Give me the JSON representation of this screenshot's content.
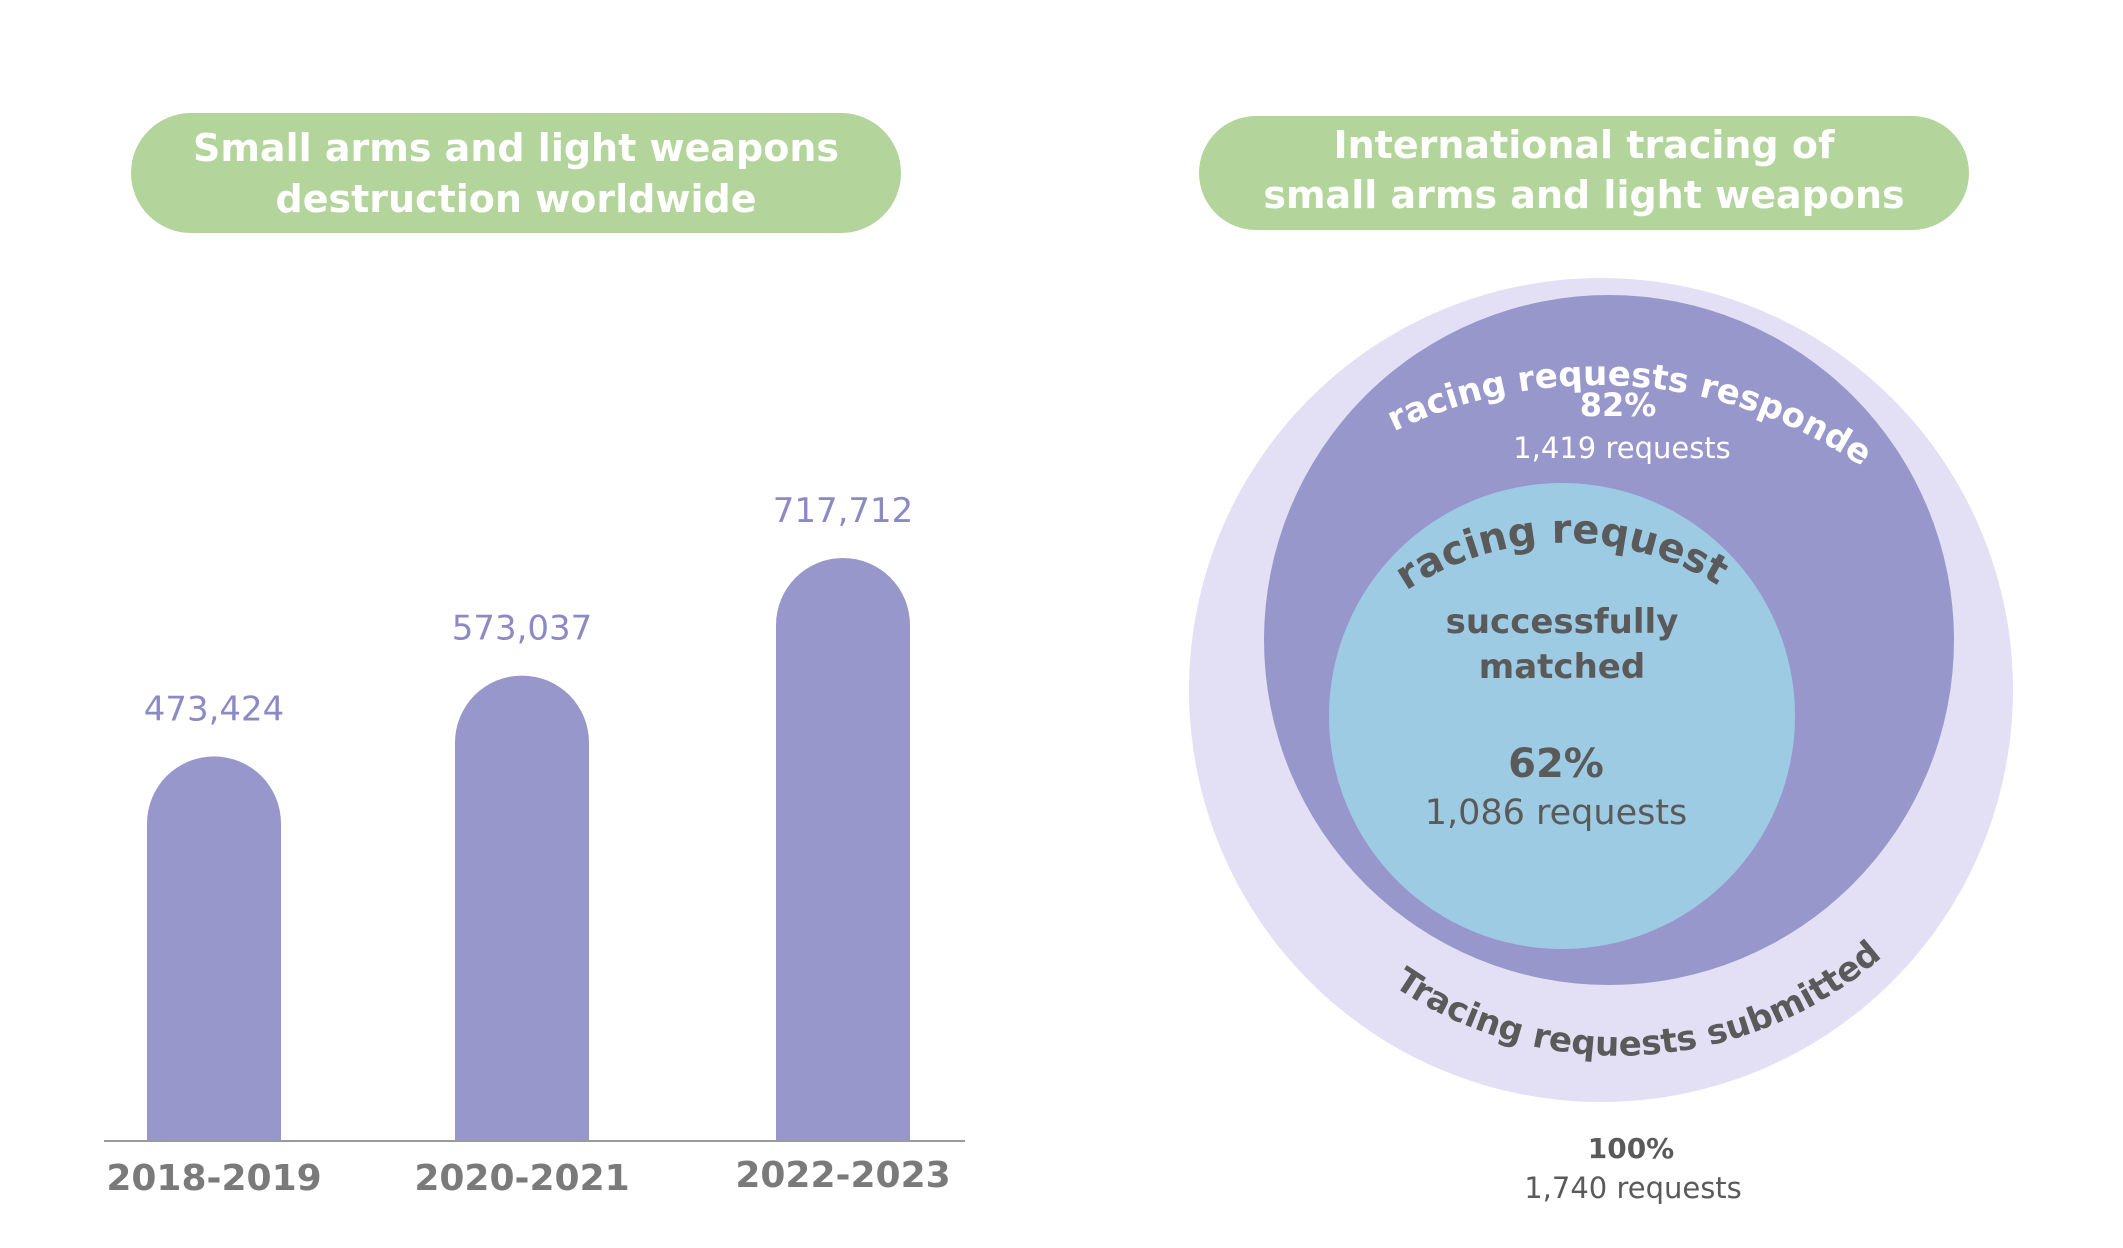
{
  "colors": {
    "pill": "#b3d49a",
    "bar": "#9897cc",
    "bar_label": "#8c8ac4",
    "axis": "#9a9a9a",
    "tick": "#7a7a7a",
    "outer_circle": "#e3e0f5",
    "middle_circle": "#9897cc",
    "inner_circle": "#9ecbe4",
    "dark_text": "#5a5a5a",
    "white_text": "#ffffff"
  },
  "chart_data": [
    {
      "type": "bar",
      "title": "Small arms and light weapons destruction worldwide",
      "title_lines": [
        "Small arms and light weapons",
        "destruction worldwide"
      ],
      "categories": [
        "2018-2019",
        "2020-2021",
        "2022-2023"
      ],
      "values": [
        473424,
        573037,
        717712
      ],
      "value_labels": [
        "473,424",
        "573,037",
        "717,712"
      ],
      "grid": false
    },
    {
      "type": "nested-circles",
      "title": "International tracing of small arms and light weapons",
      "title_lines": [
        "International tracing of",
        "small arms and light weapons"
      ],
      "levels": [
        {
          "label": "Tracing requests submitted",
          "percent": "100%",
          "count": "1,740 requests",
          "value": 1740
        },
        {
          "label": "Tracing requests responded",
          "percent": "82%",
          "count": "1,419 requests",
          "value": 1419
        },
        {
          "label": "Tracing requests",
          "label_line2": "successfully",
          "label_line3": "matched",
          "percent": "62%",
          "count": "1,086 requests",
          "value": 1086
        }
      ]
    }
  ]
}
